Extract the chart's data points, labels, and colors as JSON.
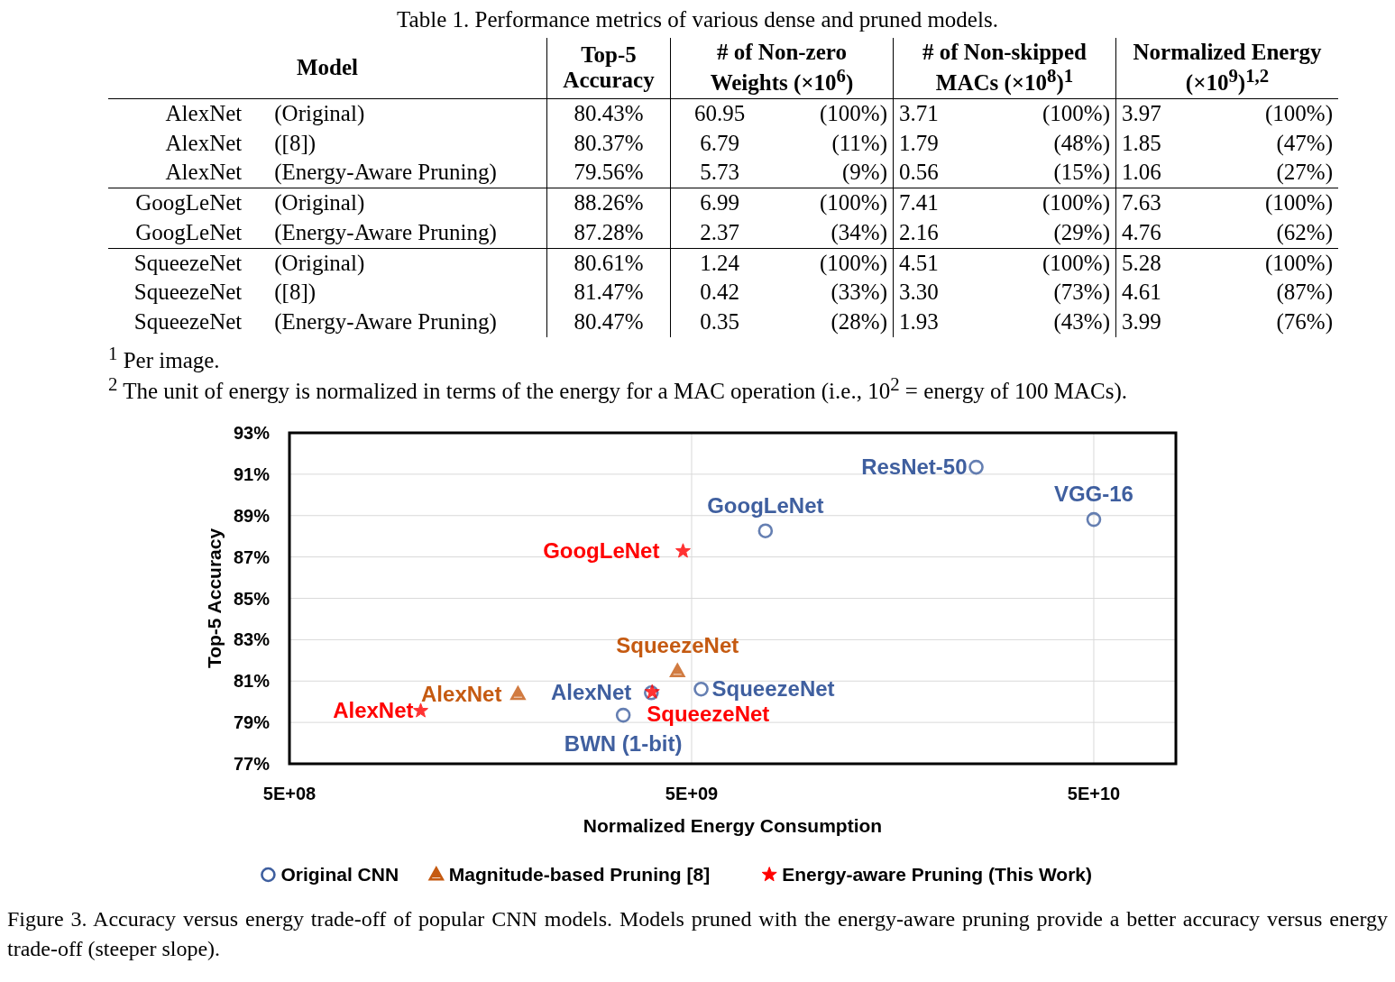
{
  "chart_data": [
    {
      "type": "other",
      "title": "Table 1. Performance metrics of various dense and pruned models.",
      "annotations": [
        "Model",
        "Top-5 Accuracy",
        "# of Non-zero Weights (×10$^{6}$)",
        "# of Non-skipped MACs (×10$^{8}$)$^{1}$",
        "Normalized Energy (×10$^{9}$)$^{1,2}$",
        "AlexNet",
        "(Original)",
        "80.43%",
        "60.95",
        "(100%)",
        "3.71",
        "(100%)",
        "3.97",
        "(100%)",
        "AlexNet",
        "([8])",
        "80.37%",
        "6.79",
        "(11%)",
        "1.79",
        "(48%)",
        "1.85",
        "(47%)",
        "AlexNet",
        "(Energy-Aware Pruning)",
        "79.56%",
        "5.73",
        "(9%)",
        "0.56",
        "(15%)",
        "1.06",
        "(27%)",
        "GoogLeNet",
        "(Original)",
        "88.26%",
        "6.99",
        "(100%)",
        "7.41",
        "(100%)",
        "7.63",
        "(100%)",
        "GoogLeNet",
        "(Energy-Aware Pruning)",
        "87.28%",
        "2.37",
        "(34%)",
        "2.16",
        "(29%)",
        "4.76",
        "(62%)",
        "SqueezeNet",
        "(Original)",
        "80.61%",
        "1.24",
        "(100%)",
        "4.51",
        "(100%)",
        "5.28",
        "(100%)",
        "SqueezeNet",
        "([8])",
        "81.47%",
        "0.42",
        "(33%)",
        "3.30",
        "(73%)",
        "4.61",
        "(87%)",
        "SqueezeNet",
        "(Energy-Aware Pruning)",
        "80.47%",
        "0.35",
        "(28%)",
        "1.93",
        "(43%)",
        "3.99",
        "(76%)",
        "$^{1}$ Per image.",
        "$^{2}$ The unit of energy is normalized in terms of the energy for a MAC operation (i.e., 10$^{2}$ = energy of 100 MACs)."
      ]
    },
    {
      "type": "scatter",
      "xlabel": "Normalized Energy Consumption",
      "ylabel": "Top-5 Accuracy",
      "log": "x",
      "grid": true,
      "legend": "bottom",
      "xlim": [
        500000000,
        80000000000
      ],
      "xticks": [
        {
          "value": 500000000,
          "label": "5E+08"
        },
        {
          "value": 5000000000,
          "label": "5E+09"
        },
        {
          "value": 50000000000,
          "label": "5E+10"
        }
      ],
      "ylim": [
        77,
        93
      ],
      "yticks": [
        {
          "value": 77,
          "label": "77%"
        },
        {
          "value": 79,
          "label": "79%"
        },
        {
          "value": 81,
          "label": "81%"
        },
        {
          "value": 83,
          "label": "83%"
        },
        {
          "value": 85,
          "label": "85%"
        },
        {
          "value": 87,
          "label": "87%"
        },
        {
          "value": 89,
          "label": "89%"
        },
        {
          "value": 91,
          "label": "91%"
        },
        {
          "value": 93,
          "label": "93%"
        }
      ],
      "series": [
        {
          "name": "Original CNN",
          "color": "#3f5f9f",
          "marker": "circle",
          "x": [
            3970000000,
            7630000000,
            5280000000,
            25500000000,
            50000000000,
            3380000000
          ],
          "values": [
            80.43,
            88.26,
            80.61,
            91.34,
            88.81,
            79.35
          ]
        },
        {
          "name": "Magnitude-based Pruning [8]",
          "color": "#c55a11",
          "marker": "triangle",
          "x": [
            1850000000,
            4610000000
          ],
          "values": [
            80.37,
            81.47
          ]
        },
        {
          "name": "Energy-aware Pruning (This Work)",
          "color": "#ff0000",
          "marker": "star",
          "x": [
            1060000000,
            4760000000,
            3990000000
          ],
          "values": [
            79.56,
            87.28,
            80.47
          ]
        }
      ],
      "annotations": [
        {
          "text": "AlexNet",
          "x": 3970000000,
          "y": 80.43
        },
        {
          "text": "GoogLeNet",
          "x": 7630000000,
          "y": 88.26
        },
        {
          "text": "SqueezeNet",
          "x": 5280000000,
          "y": 80.61
        },
        {
          "text": "ResNet-50",
          "x": 25500000000,
          "y": 91.34
        },
        {
          "text": "VGG-16",
          "x": 50000000000,
          "y": 88.81
        },
        {
          "text": "BWN (1-bit)",
          "x": 3380000000,
          "y": 79.35
        },
        {
          "text": "AlexNet",
          "x": 1850000000,
          "y": 80.37
        },
        {
          "text": "SqueezeNet",
          "x": 4610000000,
          "y": 81.47
        },
        {
          "text": "AlexNet",
          "x": 1060000000,
          "y": 79.56
        },
        {
          "text": "GoogLeNet",
          "x": 4760000000,
          "y": 87.28
        },
        {
          "text": "SqueezeNet",
          "x": 3990000000,
          "y": 80.47
        },
        "Figure 3. Accuracy versus energy trade-off of popular CNN models.  Models pruned with the energy-aware pruning provide a better accuracy versus energy trade-off (steeper slope)."
      ]
    }
  ]
}
